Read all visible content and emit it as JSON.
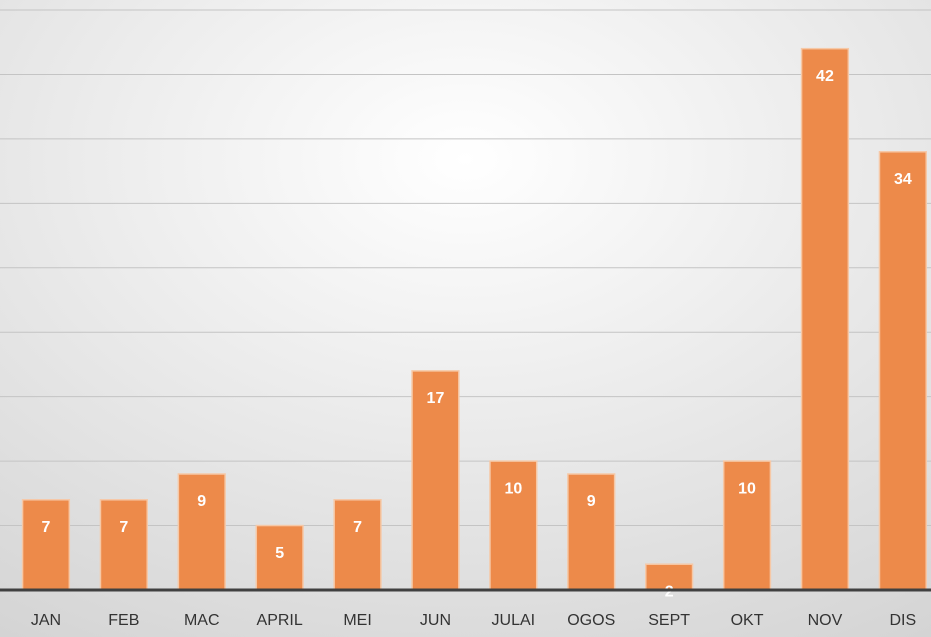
{
  "chart_data": {
    "type": "bar",
    "categories": [
      "JAN",
      "FEB",
      "MAC",
      "APRIL",
      "MEI",
      "JUN",
      "JULAI",
      "OGOS",
      "SEPT",
      "OKT",
      "NOV",
      "DIS"
    ],
    "values": [
      7,
      7,
      9,
      5,
      7,
      17,
      10,
      9,
      2,
      10,
      42,
      34
    ],
    "color": "#ed8a4a",
    "ylim": [
      0,
      45
    ],
    "yticks": [
      0,
      5,
      10,
      15,
      20,
      25,
      30,
      35,
      40,
      45
    ],
    "grid": true
  }
}
